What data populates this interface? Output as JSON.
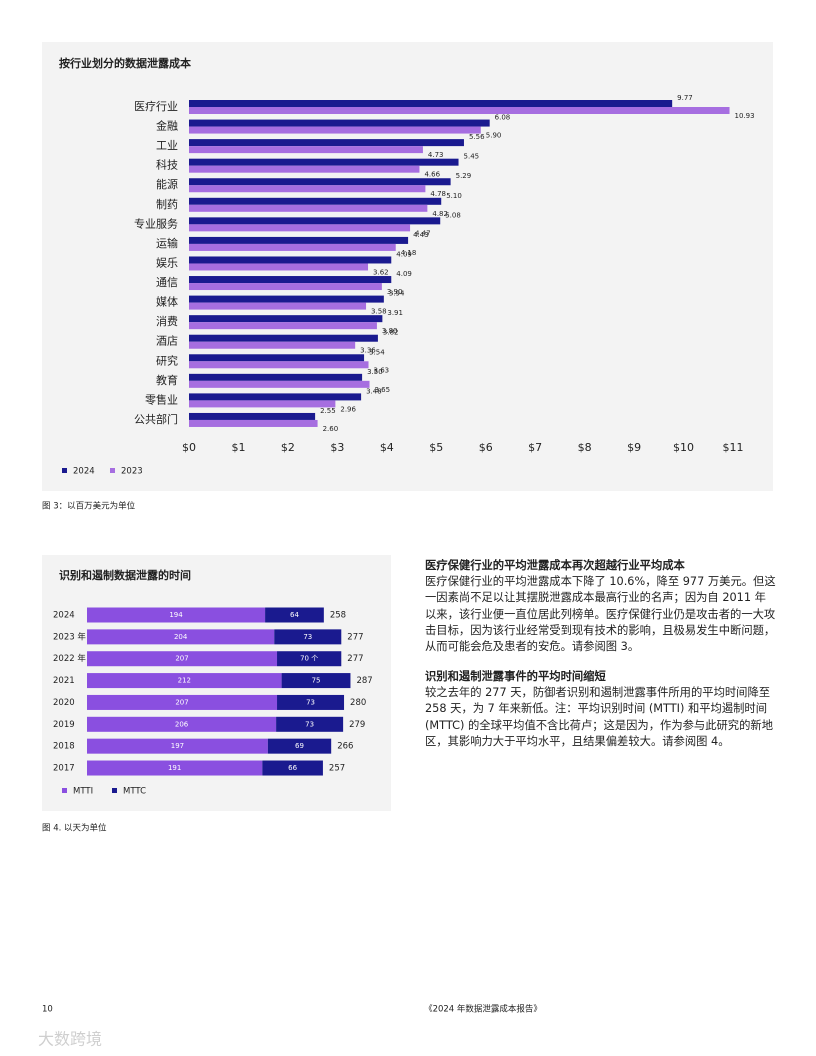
{
  "chart_data": [
    {
      "type": "bar",
      "orientation": "horizontal",
      "title": "按行业划分的数据泄露成本",
      "caption": "图 3：以百万美元为单位",
      "categories": [
        "医疗行业",
        "金融",
        "工业",
        "科技",
        "能源",
        "制药",
        "专业服务",
        "运输",
        "娱乐",
        "通信",
        "媒体",
        "消费",
        "酒店",
        "研究",
        "教育",
        "零售业",
        "公共部门"
      ],
      "series": [
        {
          "name": "2024",
          "color": "#1a1a8f",
          "values": [
            9.77,
            6.08,
            5.56,
            5.45,
            5.29,
            5.1,
            5.08,
            4.43,
            4.09,
            4.09,
            3.94,
            3.91,
            3.82,
            3.54,
            3.5,
            3.48,
            2.55
          ],
          "value_labels": [
            "9.77",
            "6.08",
            "5.56",
            "5.45",
            "5.29",
            "5.10",
            "5.08",
            "4.43",
            "4.09",
            "4.09",
            "3.94",
            "3.91",
            "3.82",
            "3.54",
            "3.50",
            "3.48",
            "2.55"
          ]
        },
        {
          "name": "2023",
          "color": "#a66ee0",
          "values": [
            10.93,
            5.9,
            4.73,
            4.66,
            4.78,
            4.82,
            4.47,
            4.18,
            3.62,
            3.9,
            3.58,
            3.8,
            3.36,
            3.63,
            3.65,
            2.96,
            2.6
          ],
          "value_labels": [
            "10.93",
            "5.90",
            "4.73",
            "4.66",
            "4.78",
            "4.82",
            "4.47",
            "4.18",
            "3.62",
            "3.90",
            "3.58",
            "3.80",
            "3.36",
            "3.63",
            "3.65",
            "2.96",
            "2.60"
          ]
        }
      ],
      "xlim": [
        0,
        11
      ],
      "xticks": [
        {
          "value": 0,
          "label": "$0"
        },
        {
          "value": 1,
          "label": "$1"
        },
        {
          "value": 2,
          "label": "$2"
        },
        {
          "value": 3,
          "label": "$3"
        },
        {
          "value": 4,
          "label": "$4"
        },
        {
          "value": 5,
          "label": "$5"
        },
        {
          "value": 6,
          "label": "$6"
        },
        {
          "value": 7,
          "label": "$7"
        },
        {
          "value": 8,
          "label": "$8"
        },
        {
          "value": 9,
          "label": "$9"
        },
        {
          "value": 10,
          "label": "$10"
        },
        {
          "value": 11,
          "label": "$11"
        }
      ],
      "legend": "bottom-left"
    },
    {
      "type": "stacked_bar",
      "orientation": "horizontal",
      "title": "识别和遏制数据泄露的时间",
      "caption": "图 4. 以天为单位",
      "categories": [
        "2024",
        "2023 年",
        "2022 年",
        "2021",
        "2020",
        "2019",
        "2018",
        "2017"
      ],
      "series": [
        {
          "name": "MTTI",
          "color": "#8a4fe0",
          "values": [
            194,
            204,
            207,
            212,
            207,
            206,
            197,
            191
          ]
        },
        {
          "name": "MTTC",
          "color": "#1a1a8f",
          "values": [
            64,
            73,
            70,
            75,
            73,
            73,
            69,
            66
          ],
          "value_labels": [
            "64",
            "73",
            "70 个",
            "75",
            "73",
            "73",
            "69",
            "66"
          ]
        }
      ],
      "totals": [
        258,
        277,
        277,
        287,
        280,
        279,
        266,
        257
      ],
      "legend": "bottom-left"
    }
  ],
  "sections": [
    {
      "heading": "医疗保健行业的平均泄露成本再次超越行业平均成本",
      "body": "医疗保健行业的平均泄露成本下降了 10.6%，降至 977 万美元。但这一因素尚不足以让其摆脱泄露成本最高行业的名声；因为自 2011 年以来，该行业便一直位居此列榜单。医疗保健行业仍是攻击者的一大攻击目标，因为该行业经常受到现有技术的影响，且极易发生中断问题，从而可能会危及患者的安危。请参阅图 3。"
    },
    {
      "heading": "识别和遏制泄露事件的平均时间缩短",
      "body": "较之去年的 277 天，防御者识别和遏制泄露事件所用的平均时间降至 258 天，为 7 年来新低。注：平均识别时间 (MTTI) 和平均遏制时间 (MTTC) 的全球平均值不含比荷卢；这是因为，作为参与此研究的新地区，其影响力大于平均水平，且结果偏差较大。请参阅图 4。"
    }
  ],
  "footer": {
    "page": "10",
    "title": "《2024 年数据泄露成本报告》"
  },
  "watermark": "大数跨境"
}
